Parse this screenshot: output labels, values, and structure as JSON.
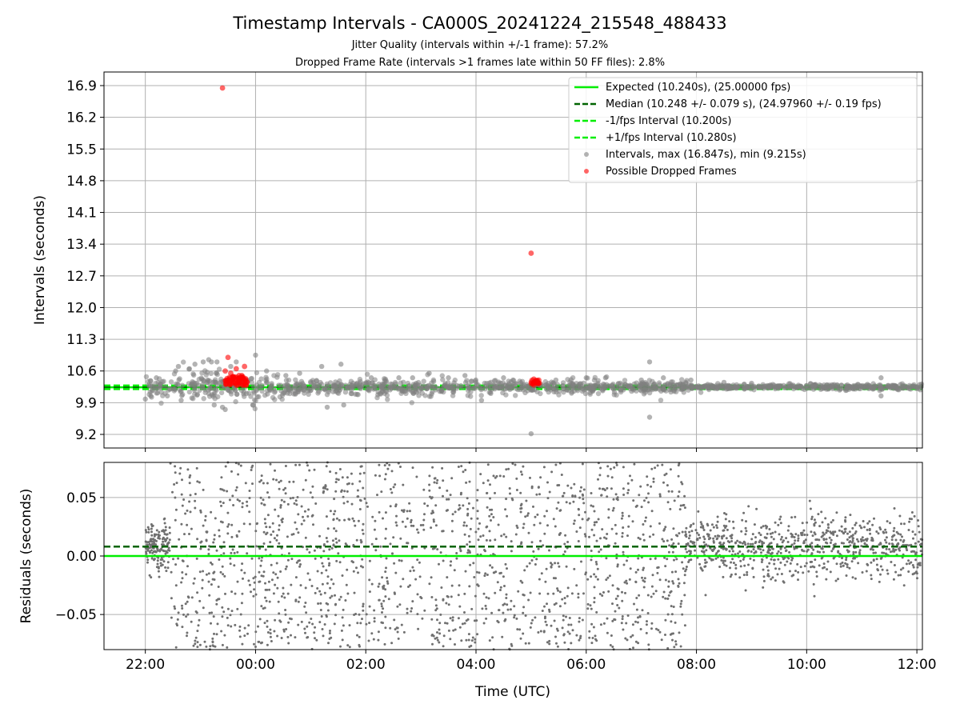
{
  "figure": {
    "title": "Timestamp Intervals - CA000S_20241224_215548_488433",
    "subtitle_1": "Jitter Quality (intervals within +/-1 frame): 57.2%",
    "subtitle_2": "Dropped Frame Rate (intervals >1 frames late within 50 FF files): 2.8%"
  },
  "chart_data": [
    {
      "type": "scatter",
      "panel": "intervals",
      "ylabel": "Intervals (seconds)",
      "xlabel": "",
      "x_unit": "hours since 00:00 UTC",
      "xlim": [
        -2.75,
        12.1
      ],
      "ylim": [
        8.9,
        17.2
      ],
      "yticks": [
        9.2,
        9.9,
        10.6,
        11.3,
        12.0,
        12.7,
        13.4,
        14.1,
        14.8,
        15.5,
        16.2,
        16.9
      ],
      "ytick_labels": [
        "9.2",
        "9.9",
        "10.6",
        "11.3",
        "12.0",
        "12.7",
        "13.4",
        "14.1",
        "14.8",
        "15.5",
        "16.2",
        "16.9"
      ],
      "grid": true,
      "legend_position": "top-right",
      "lines": [
        {
          "name": "Expected (10.240s), (25.00000 fps)",
          "y": 10.24,
          "color": "#00ee00",
          "style": "solid"
        },
        {
          "name": "Median (10.248 +/- 0.079 s), (24.97960 +/- 0.19 fps)",
          "y": 10.248,
          "color": "#006400",
          "style": "dashed"
        },
        {
          "name": "-1/fps Interval (10.200s)",
          "y": 10.2,
          "color": "#00ee00",
          "style": "dashed"
        },
        {
          "name": "+1/fps Interval (10.280s)",
          "y": 10.28,
          "color": "#00ee00",
          "style": "dashed"
        }
      ],
      "series": [
        {
          "name": "Intervals, max (16.847s), min (9.215s)",
          "color": "#808080",
          "points": [
            [
              -2.0,
              9.98
            ],
            [
              -1.9,
              10.05
            ],
            [
              -1.8,
              10.45
            ],
            [
              -1.6,
              10.05
            ],
            [
              -1.45,
              10.6
            ],
            [
              -1.4,
              10.7
            ],
            [
              -1.35,
              9.95
            ],
            [
              -1.2,
              10.65
            ],
            [
              -1.1,
              10.75
            ],
            [
              -0.95,
              10.8
            ],
            [
              -0.85,
              10.85
            ],
            [
              -0.8,
              10.8
            ],
            [
              -0.75,
              9.85
            ],
            [
              -0.7,
              10.8
            ],
            [
              -0.6,
              9.8
            ],
            [
              -0.55,
              9.75
            ],
            [
              -0.45,
              10.7
            ],
            [
              -0.35,
              10.8
            ],
            [
              -0.05,
              9.85
            ],
            [
              0.0,
              10.95
            ],
            [
              0.2,
              10.6
            ],
            [
              0.55,
              10.5
            ],
            [
              0.8,
              10.55
            ],
            [
              1.2,
              10.7
            ],
            [
              1.3,
              9.8
            ],
            [
              1.55,
              10.75
            ],
            [
              1.6,
              9.85
            ],
            [
              2.1,
              10.45
            ],
            [
              2.6,
              10.45
            ],
            [
              2.85,
              10.45
            ],
            [
              3.15,
              10.55
            ],
            [
              3.5,
              10.45
            ],
            [
              3.8,
              10.5
            ],
            [
              4.1,
              9.95
            ],
            [
              4.5,
              10.45
            ],
            [
              5.0,
              9.215
            ],
            [
              5.45,
              10.4
            ],
            [
              6.0,
              10.45
            ],
            [
              6.35,
              10.45
            ],
            [
              7.0,
              10.4
            ],
            [
              7.15,
              10.8
            ],
            [
              7.15,
              9.58
            ],
            [
              7.4,
              10.45
            ],
            [
              7.9,
              10.4
            ],
            [
              8.5,
              10.35
            ],
            [
              9.0,
              10.33
            ],
            [
              9.7,
              10.32
            ],
            [
              10.5,
              10.3
            ],
            [
              11.35,
              10.45
            ],
            [
              11.35,
              10.05
            ],
            [
              11.7,
              10.3
            ],
            [
              12.05,
              10.3
            ]
          ]
        },
        {
          "name": "Possible Dropped Frames",
          "color": "#ff0000",
          "points": [
            [
              -0.6,
              16.847
            ],
            [
              -0.5,
              10.9
            ],
            [
              -0.55,
              10.6
            ],
            [
              -0.45,
              10.55
            ],
            [
              -0.4,
              10.45
            ],
            [
              -0.35,
              10.65
            ],
            [
              -0.3,
              10.5
            ],
            [
              -0.25,
              10.5
            ],
            [
              -0.2,
              10.7
            ],
            [
              -0.5,
              10.4
            ],
            [
              -0.4,
              10.35
            ],
            [
              -0.3,
              10.35
            ],
            [
              5.0,
              13.2
            ],
            [
              5.05,
              10.42
            ],
            [
              5.1,
              10.38
            ],
            [
              5.15,
              10.33
            ]
          ]
        }
      ]
    },
    {
      "type": "scatter",
      "panel": "residuals",
      "ylabel": "Residuals (seconds)",
      "xlabel": "Time (UTC)",
      "xlim": [
        -2.75,
        12.1
      ],
      "ylim": [
        -0.08,
        0.08
      ],
      "yticks": [
        -0.05,
        0.0,
        0.05
      ],
      "ytick_labels": [
        "−0.05",
        "0.00",
        "0.05"
      ],
      "xticks": [
        -2,
        0,
        2,
        4,
        6,
        8,
        10,
        12
      ],
      "xtick_labels": [
        "22:00",
        "00:00",
        "02:00",
        "04:00",
        "06:00",
        "08:00",
        "10:00",
        "12:00"
      ],
      "grid": true,
      "lines": [
        {
          "name": "expected",
          "y": 0.0,
          "color": "#00ee00",
          "style": "solid"
        },
        {
          "name": "median",
          "y": 0.008,
          "color": "#006400",
          "style": "dashed"
        }
      ],
      "point_color": "#707070"
    }
  ]
}
